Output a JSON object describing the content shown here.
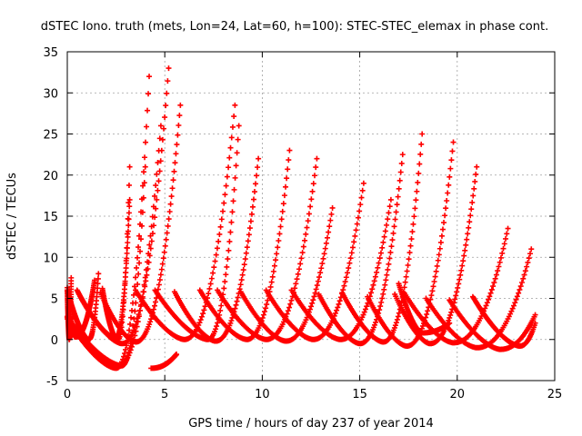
{
  "chart_data": {
    "type": "scatter",
    "title": "dSTEC Iono. truth (mets, Lon=24, Lat=60, h=100): STEC-STEC_elemax in phase cont.",
    "xlabel": "GPS time / hours of day 237 of year 2014",
    "ylabel": "dSTEC  / TECUs",
    "xlim": [
      0,
      25
    ],
    "ylim": [
      -5,
      35
    ],
    "xticks": [
      0,
      5,
      10,
      15,
      20,
      25
    ],
    "yticks": [
      -5,
      0,
      5,
      10,
      15,
      20,
      25,
      30,
      35
    ],
    "grid": true,
    "marker": "+",
    "series_color": "#ff0000",
    "series": [
      {
        "start": 0.0,
        "min_t": 1.1,
        "min_y": 0.0,
        "end": 1.6,
        "end_y": 8.0
      },
      {
        "start": 0.0,
        "min_t": 0.1,
        "min_y": 0.0,
        "end": 0.2,
        "end_y": 7.5
      },
      {
        "start": 0.0,
        "min_t": 0.4,
        "min_y": 0.3,
        "end": 1.4,
        "end_y": 7.2
      },
      {
        "start": 0.0,
        "min_t": 2.5,
        "min_y": -3.5,
        "end": 4.2,
        "end_y": 32.0
      },
      {
        "start": 0.0,
        "min_t": 2.8,
        "min_y": -3.2,
        "end": 4.0,
        "end_y": 21.0
      },
      {
        "start": 0.5,
        "min_t": 2.6,
        "min_y": 0.0,
        "end": 3.2,
        "end_y": 21.0
      },
      {
        "start": 1.8,
        "min_t": 2.5,
        "min_y": 0.2,
        "end": 3.2,
        "end_y": 17.0
      },
      {
        "start": 0.6,
        "min_t": 2.8,
        "min_y": -0.5,
        "end": 5.2,
        "end_y": 33.0
      },
      {
        "start": 0.0,
        "min_t": 2.6,
        "min_y": -3.3,
        "end": 4.8,
        "end_y": 26.0
      },
      {
        "start": 1.7,
        "min_t": 3.5,
        "min_y": -0.3,
        "end": 5.8,
        "end_y": 28.5
      },
      {
        "start": 3.5,
        "min_t": 6.0,
        "min_y": 0.0,
        "end": 8.6,
        "end_y": 28.5
      },
      {
        "start": 4.5,
        "min_t": 7.2,
        "min_y": 0.0,
        "end": 8.8,
        "end_y": 26.0
      },
      {
        "start": 5.5,
        "min_t": 7.6,
        "min_y": -0.2,
        "end": 9.8,
        "end_y": 22.0
      },
      {
        "start": 6.8,
        "min_t": 9.2,
        "min_y": 0.0,
        "end": 11.4,
        "end_y": 23.0
      },
      {
        "start": 7.7,
        "min_t": 10.2,
        "min_y": 0.0,
        "end": 12.8,
        "end_y": 22.0
      },
      {
        "start": 8.9,
        "min_t": 11.2,
        "min_y": -0.2,
        "end": 13.6,
        "end_y": 16.0
      },
      {
        "start": 10.2,
        "min_t": 12.6,
        "min_y": 0.0,
        "end": 15.2,
        "end_y": 19.0
      },
      {
        "start": 11.5,
        "min_t": 14.0,
        "min_y": 0.0,
        "end": 16.6,
        "end_y": 17.0
      },
      {
        "start": 12.9,
        "min_t": 15.0,
        "min_y": -0.5,
        "end": 17.2,
        "end_y": 22.5
      },
      {
        "start": 14.1,
        "min_t": 16.2,
        "min_y": -0.3,
        "end": 18.2,
        "end_y": 25.0
      },
      {
        "start": 15.4,
        "min_t": 17.4,
        "min_y": -0.8,
        "end": 19.8,
        "end_y": 24.0
      },
      {
        "start": 16.8,
        "min_t": 18.6,
        "min_y": -0.5,
        "end": 21.0,
        "end_y": 21.0
      },
      {
        "start": 17.3,
        "min_t": 19.8,
        "min_y": -0.4,
        "end": 22.6,
        "end_y": 13.5
      },
      {
        "start": 18.4,
        "min_t": 21.0,
        "min_y": -1.0,
        "end": 23.8,
        "end_y": 11.0
      },
      {
        "start": 19.6,
        "min_t": 22.2,
        "min_y": -1.2,
        "end": 24.0,
        "end_y": 3.0
      },
      {
        "start": 20.8,
        "min_t": 23.2,
        "min_y": -0.8,
        "end": 24.0,
        "end_y": 2.0
      },
      {
        "start": 17.0,
        "min_t": 18.2,
        "min_y": 0.8,
        "end": 19.6,
        "end_y": 2.0
      },
      {
        "start": 4.3,
        "min_t": 4.3,
        "min_y": -3.5,
        "end": 5.6,
        "end_y": -1.8
      }
    ]
  }
}
